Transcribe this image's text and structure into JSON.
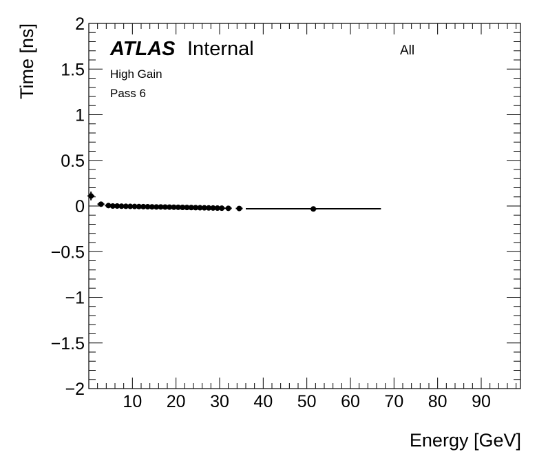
{
  "chart_data": {
    "type": "scatter",
    "title": "",
    "xlabel": "Energy [GeV]",
    "ylabel": "Time [ns]",
    "xlim": [
      0,
      99
    ],
    "ylim": [
      -2,
      2
    ],
    "x_ticks": [
      10,
      20,
      30,
      40,
      50,
      60,
      70,
      80,
      90
    ],
    "x_tick_labels": [
      "10",
      "20",
      "30",
      "40",
      "50",
      "60",
      "70",
      "80",
      "90"
    ],
    "y_ticks": [
      -2,
      -1.5,
      -1,
      -0.5,
      0,
      0.5,
      1,
      1.5,
      2
    ],
    "y_tick_labels": [
      "−2",
      "−1.5",
      "−1",
      "−0.5",
      "0",
      "0.5",
      "1",
      "1.5",
      "2"
    ],
    "grid": false,
    "annotations": {
      "atlas": "ATLAS",
      "internal": "Internal",
      "gain": "High Gain",
      "pass": "Pass 6",
      "selection": "All"
    },
    "series": [
      {
        "marker": "circle",
        "color": "#000000",
        "points": [
          {
            "x": 0.5,
            "y": 0.11,
            "yerr": 0.04
          },
          {
            "x": 2.8,
            "y": 0.02,
            "yerr": 0.01
          },
          {
            "x": 4.5,
            "y": 0.005,
            "yerr": 0.005
          },
          {
            "x": 5.5,
            "y": 0.0,
            "yerr": 0.005
          },
          {
            "x": 6.5,
            "y": 0.0,
            "yerr": 0.004
          },
          {
            "x": 7.5,
            "y": -0.002,
            "yerr": 0.004
          },
          {
            "x": 8.5,
            "y": -0.003,
            "yerr": 0.004
          },
          {
            "x": 9.5,
            "y": -0.004,
            "yerr": 0.004
          },
          {
            "x": 10.5,
            "y": -0.005,
            "yerr": 0.004
          },
          {
            "x": 11.5,
            "y": -0.006,
            "yerr": 0.004
          },
          {
            "x": 12.5,
            "y": -0.007,
            "yerr": 0.004
          },
          {
            "x": 13.5,
            "y": -0.008,
            "yerr": 0.004
          },
          {
            "x": 14.5,
            "y": -0.009,
            "yerr": 0.004
          },
          {
            "x": 15.5,
            "y": -0.01,
            "yerr": 0.004
          },
          {
            "x": 16.5,
            "y": -0.01,
            "yerr": 0.004
          },
          {
            "x": 17.5,
            "y": -0.011,
            "yerr": 0.004
          },
          {
            "x": 18.5,
            "y": -0.012,
            "yerr": 0.004
          },
          {
            "x": 19.5,
            "y": -0.013,
            "yerr": 0.004
          },
          {
            "x": 20.5,
            "y": -0.014,
            "yerr": 0.004
          },
          {
            "x": 21.5,
            "y": -0.015,
            "yerr": 0.004
          },
          {
            "x": 22.5,
            "y": -0.016,
            "yerr": 0.004
          },
          {
            "x": 23.5,
            "y": -0.017,
            "yerr": 0.004
          },
          {
            "x": 24.5,
            "y": -0.018,
            "yerr": 0.004
          },
          {
            "x": 25.5,
            "y": -0.019,
            "yerr": 0.004
          },
          {
            "x": 26.5,
            "y": -0.02,
            "yerr": 0.004
          },
          {
            "x": 27.5,
            "y": -0.021,
            "yerr": 0.004
          },
          {
            "x": 28.5,
            "y": -0.022,
            "yerr": 0.005
          },
          {
            "x": 29.5,
            "y": -0.023,
            "yerr": 0.005
          },
          {
            "x": 30.5,
            "y": -0.024,
            "yerr": 0.005
          },
          {
            "x": 32,
            "y": -0.025,
            "yerr": 0.005
          },
          {
            "x": 34.5,
            "y": -0.027,
            "yerr": 0.006
          },
          {
            "x": 51.5,
            "y": -0.032,
            "yerr": 0.008
          }
        ],
        "xerr_bars": [
          {
            "x1": 0,
            "x2": 1,
            "y": 0.11
          },
          {
            "x1": 2,
            "x2": 3.5,
            "y": 0.02
          },
          {
            "x1": 36,
            "x2": 67,
            "y": -0.03
          }
        ]
      }
    ]
  }
}
